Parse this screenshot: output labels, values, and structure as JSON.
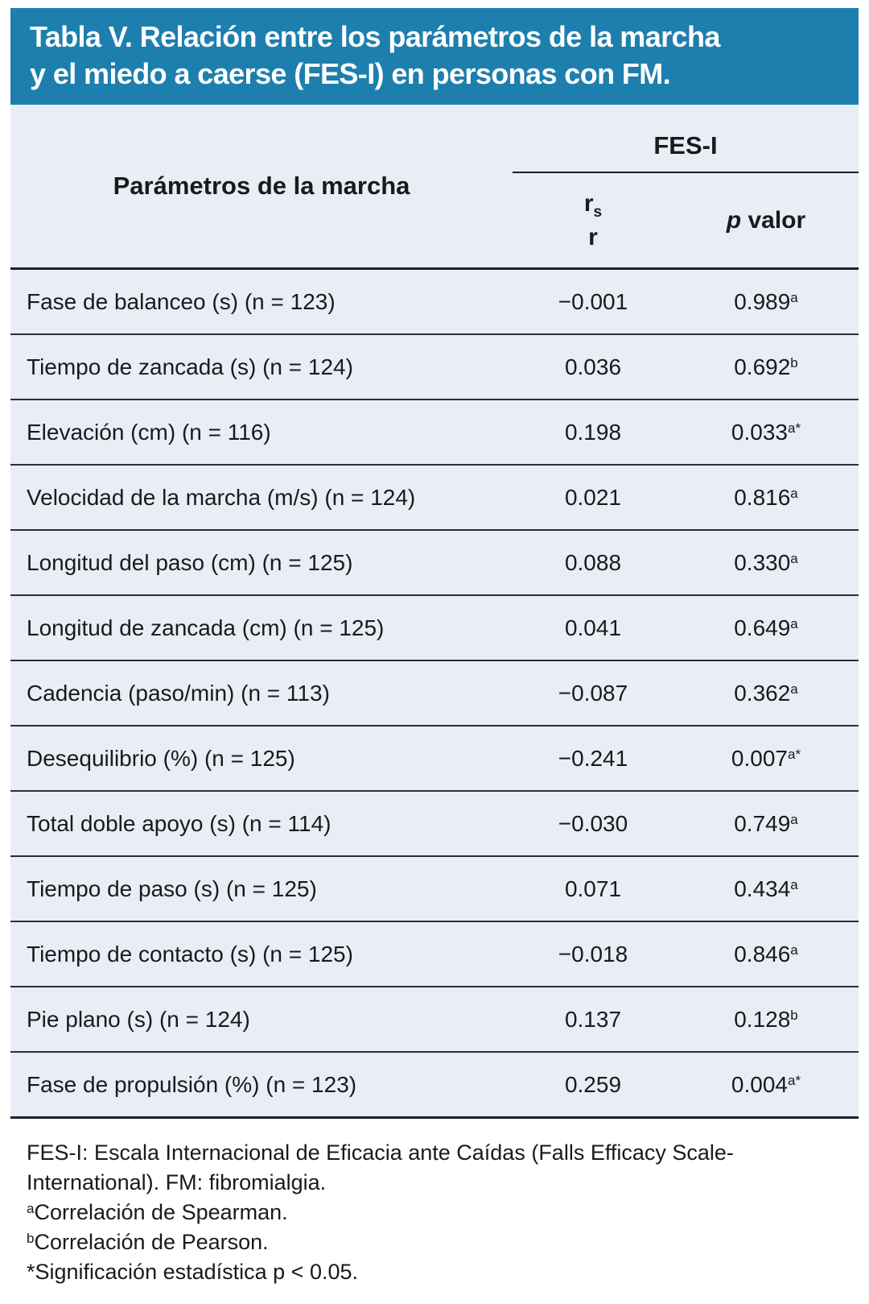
{
  "title": {
    "line1": "Tabla V. Relación entre los parámetros de la marcha",
    "line2": "y el miedo a caerse (FES-I) en personas con FM."
  },
  "table": {
    "param_header": "Parámetros de la marcha",
    "group_header": "FES-I",
    "coef_header": {
      "r1": "r",
      "sub": "s",
      "r2": "r"
    },
    "p_header": {
      "italic": "p",
      "rest": " valor"
    },
    "rows": [
      {
        "label": "Fase de balanceo (s) (n = 123)",
        "rs": "−0.001",
        "p": "0.989",
        "p_sup": "a"
      },
      {
        "label": "Tiempo de zancada (s) (n = 124)",
        "rs": "0.036",
        "p": "0.692",
        "p_sup": "b"
      },
      {
        "label": "Elevación (cm) (n = 116)",
        "rs": "0.198",
        "p": "0.033",
        "p_sup": "a*"
      },
      {
        "label": "Velocidad de la marcha (m/s) (n = 124)",
        "rs": "0.021",
        "p": "0.816",
        "p_sup": "a"
      },
      {
        "label": "Longitud del paso (cm) (n = 125)",
        "rs": "0.088",
        "p": "0.330",
        "p_sup": "a"
      },
      {
        "label": "Longitud de zancada (cm) (n = 125)",
        "rs": "0.041",
        "p": "0.649",
        "p_sup": "a"
      },
      {
        "label": "Cadencia (paso/min) (n = 113)",
        "rs": "−0.087",
        "p": "0.362",
        "p_sup": "a"
      },
      {
        "label": "Desequilibrio (%) (n = 125)",
        "rs": "−0.241",
        "p": "0.007",
        "p_sup": "a*"
      },
      {
        "label": "Total doble apoyo (s) (n = 114)",
        "rs": "−0.030",
        "p": "0.749",
        "p_sup": "a"
      },
      {
        "label": "Tiempo de paso (s) (n = 125)",
        "rs": "0.071",
        "p": "0.434",
        "p_sup": "a"
      },
      {
        "label": "Tiempo de contacto (s) (n = 125)",
        "rs": "−0.018",
        "p": "0.846",
        "p_sup": "a"
      },
      {
        "label": "Pie plano (s) (n = 124)",
        "rs": "0.137",
        "p": "0.128",
        "p_sup": "b"
      },
      {
        "label": "Fase de propulsión (%) (n = 123)",
        "rs": "0.259",
        "p": "0.004",
        "p_sup": "a*"
      }
    ]
  },
  "footnotes": [
    {
      "sup": "",
      "text": "FES-I: Escala Internacional de Eficacia ante Caídas (Falls Efficacy Scale-International). FM: fibromialgia."
    },
    {
      "sup": "a",
      "text": "Correlación de Spearman."
    },
    {
      "sup": "b",
      "text": "Correlación de Pearson."
    },
    {
      "sup": "",
      "text": "*Significación estadística p < 0.05."
    }
  ],
  "colors": {
    "title_bar_bg": "#1d7fae",
    "table_bg": "#e9edf5",
    "text": "#1a1a1a"
  }
}
